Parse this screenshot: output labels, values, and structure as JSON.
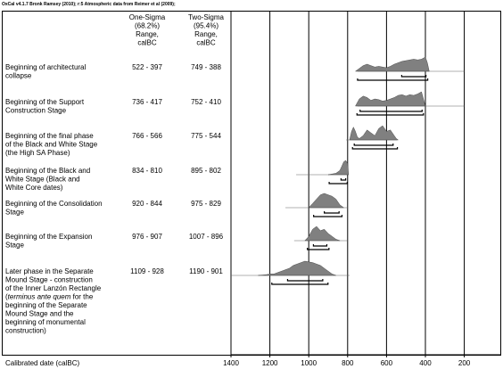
{
  "chart_data": {
    "type": "multiplot",
    "header": "OxCal v4.1.7 Bronk Ramsey (2010); r:5 Atmospheric data from Reimer et al (2009);",
    "column_headers": [
      [
        "One-Sigma",
        "(68.2%)",
        "Range,",
        "calBC"
      ],
      [
        "Two-Sigma",
        "(95.4%)",
        "Range,",
        "calBC"
      ]
    ],
    "xlabel": "Calibrated date (calBC)",
    "xlim": [
      1400,
      10
    ],
    "xticks": [
      1400,
      1200,
      1000,
      800,
      600,
      400,
      200
    ],
    "grid": true,
    "color": "#808080",
    "rows": [
      {
        "label": [
          "Beginning of architectural",
          "collapse"
        ],
        "one_sigma": "522 - 397",
        "two_sigma": "749 - 388",
        "sigma1": [
          522,
          397
        ],
        "sigma2": [
          749,
          388
        ],
        "span": [
          750,
          200
        ],
        "x": [
          760,
          740,
          720,
          700,
          680,
          660,
          640,
          620,
          600,
          580,
          560,
          540,
          520,
          500,
          480,
          460,
          440,
          420,
          400,
          390,
          380
        ],
        "density": [
          0,
          0.2,
          0.4,
          0.5,
          0.4,
          0.3,
          0.35,
          0.3,
          0.25,
          0.35,
          0.5,
          0.6,
          0.7,
          0.75,
          0.8,
          0.85,
          0.8,
          0.85,
          1,
          0.6,
          0
        ]
      },
      {
        "label": [
          "Beginning of the Support",
          "Construction Stage"
        ],
        "one_sigma": "736 - 417",
        "two_sigma": "752 - 410",
        "sigma1": [
          736,
          417
        ],
        "sigma2": [
          752,
          410
        ],
        "span": [
          750,
          200
        ],
        "x": [
          760,
          740,
          720,
          700,
          680,
          660,
          640,
          620,
          600,
          580,
          560,
          540,
          520,
          500,
          480,
          460,
          440,
          420,
          410,
          400
        ],
        "density": [
          0,
          0.5,
          0.7,
          0.6,
          0.4,
          0.5,
          0.45,
          0.35,
          0.4,
          0.5,
          0.6,
          0.75,
          0.8,
          0.7,
          0.8,
          0.75,
          0.85,
          1,
          0.5,
          0
        ]
      },
      {
        "label": [
          "Beginning of the final phase",
          "of the Black and White Stage",
          "(the High SA Phase)"
        ],
        "one_sigma": "766 - 566",
        "two_sigma": "775 - 544",
        "sigma1": [
          766,
          566
        ],
        "sigma2": [
          775,
          544
        ],
        "span": [
          808,
          545
        ],
        "x": [
          790,
          780,
          770,
          760,
          750,
          740,
          720,
          700,
          680,
          660,
          640,
          620,
          600,
          580,
          560,
          550,
          540
        ],
        "density": [
          0,
          0.6,
          0.9,
          0.6,
          0.2,
          0.1,
          0.3,
          0.7,
          0.5,
          0.3,
          0.8,
          1,
          0.6,
          0.7,
          0.3,
          0.1,
          0
        ]
      },
      {
        "label": [
          "Beginning of the Black and",
          "White Stage (Black and",
          "White Core dates)"
        ],
        "one_sigma": "834 - 810",
        "two_sigma": "895 - 802",
        "sigma1": [
          834,
          810
        ],
        "sigma2": [
          895,
          802
        ],
        "span": [
          1065,
          795
        ],
        "x": [
          900,
          880,
          860,
          840,
          830,
          820,
          810,
          800,
          795
        ],
        "density": [
          0,
          0.05,
          0.1,
          0.3,
          0.6,
          0.9,
          1,
          0.8,
          0
        ]
      },
      {
        "label": [
          "Beginning of the Consolidation",
          "Stage"
        ],
        "one_sigma": "920 - 844",
        "two_sigma": "975 - 829",
        "sigma1": [
          920,
          844
        ],
        "sigma2": [
          975,
          829
        ],
        "span": [
          1120,
          800
        ],
        "x": [
          1000,
          980,
          960,
          940,
          920,
          900,
          880,
          860,
          840,
          820
        ],
        "density": [
          0,
          0.3,
          0.6,
          0.9,
          1,
          0.9,
          0.8,
          0.6,
          0.2,
          0
        ]
      },
      {
        "label": [
          "Beginning of the Expansion",
          "Stage"
        ],
        "one_sigma": "976 - 907",
        "two_sigma": "1007 - 896",
        "sigma1": [
          976,
          907
        ],
        "sigma2": [
          1007,
          896
        ],
        "span": [
          1075,
          800
        ],
        "x": [
          1020,
          1000,
          980,
          960,
          940,
          920,
          900,
          880,
          860,
          840
        ],
        "density": [
          0,
          0.3,
          0.8,
          1,
          0.7,
          0.8,
          0.5,
          0.3,
          0.1,
          0
        ]
      },
      {
        "label": [
          "Later phase in the Separate",
          "Mound Stage - construction",
          "of the Inner Lanzón Rectangle",
          [
            "(",
            "terminus ante quem",
            " for the"
          ],
          "beginning of the Separate",
          "Mound Stage and the",
          "beginning of monumental",
          "construction)"
        ],
        "one_sigma": "1109 - 928",
        "two_sigma": "1190 - 901",
        "sigma1": [
          1109,
          928
        ],
        "sigma2": [
          1190,
          901
        ],
        "span": [
          1400,
          790
        ],
        "x": [
          1260,
          1220,
          1200,
          1180,
          1160,
          1140,
          1120,
          1100,
          1080,
          1060,
          1040,
          1020,
          1000,
          980,
          960,
          940,
          920,
          900,
          880,
          860
        ],
        "density": [
          0,
          0.05,
          0.1,
          0.1,
          0.2,
          0.3,
          0.4,
          0.5,
          0.7,
          0.8,
          0.9,
          1,
          0.95,
          0.9,
          0.8,
          0.7,
          0.5,
          0.3,
          0.1,
          0
        ]
      }
    ]
  }
}
